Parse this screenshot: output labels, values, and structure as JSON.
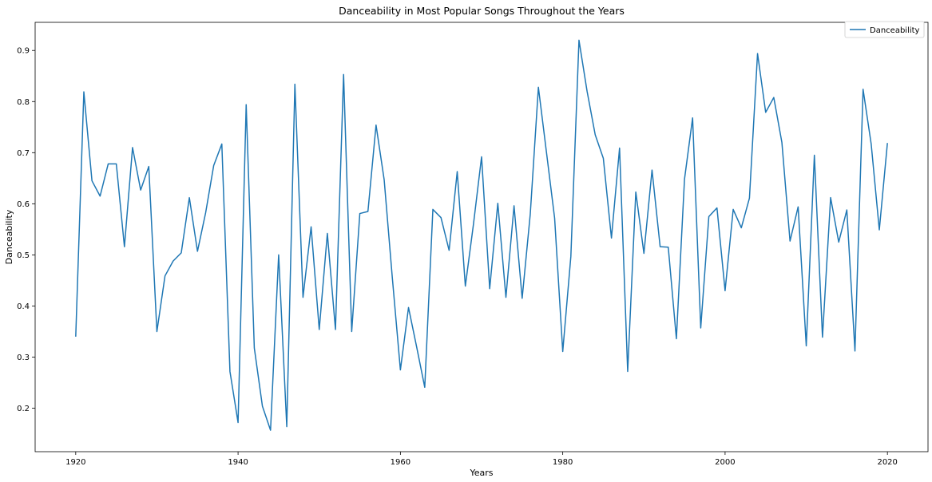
{
  "chart_data": {
    "type": "line",
    "title": "Danceability in Most Popular Songs Throughout the Years",
    "xlabel": "Years",
    "ylabel": "Danceability",
    "xlim": [
      1915,
      2025
    ],
    "ylim": [
      0.115,
      0.955
    ],
    "xticks": [
      1920,
      1940,
      1960,
      1980,
      2000,
      2020
    ],
    "yticks": [
      0.2,
      0.3,
      0.4,
      0.5,
      0.6,
      0.7,
      0.8,
      0.9
    ],
    "grid": false,
    "legend_position": "top-right",
    "series": [
      {
        "name": "Danceability",
        "color": "#1f77b4",
        "x": [
          1920,
          1921,
          1922,
          1923,
          1924,
          1925,
          1926,
          1927,
          1928,
          1929,
          1930,
          1931,
          1932,
          1933,
          1934,
          1935,
          1936,
          1937,
          1938,
          1939,
          1940,
          1941,
          1942,
          1943,
          1944,
          1945,
          1946,
          1947,
          1948,
          1949,
          1950,
          1951,
          1952,
          1953,
          1954,
          1955,
          1956,
          1957,
          1958,
          1959,
          1960,
          1961,
          1962,
          1963,
          1964,
          1965,
          1966,
          1967,
          1968,
          1969,
          1970,
          1971,
          1972,
          1973,
          1974,
          1975,
          1976,
          1977,
          1978,
          1979,
          1980,
          1981,
          1982,
          1983,
          1984,
          1985,
          1986,
          1987,
          1988,
          1989,
          1990,
          1991,
          1992,
          1993,
          1994,
          1995,
          1996,
          1997,
          1998,
          1999,
          2000,
          2001,
          2002,
          2003,
          2004,
          2005,
          2006,
          2007,
          2008,
          2009,
          2010,
          2011,
          2012,
          2013,
          2014,
          2015,
          2016,
          2017,
          2018,
          2019,
          2020
        ],
        "values": [
          0.34,
          0.819,
          0.645,
          0.615,
          0.678,
          0.678,
          0.516,
          0.71,
          0.627,
          0.673,
          0.35,
          0.459,
          0.488,
          0.504,
          0.612,
          0.507,
          0.582,
          0.675,
          0.717,
          0.272,
          0.172,
          0.794,
          0.318,
          0.204,
          0.157,
          0.5,
          0.164,
          0.834,
          0.417,
          0.555,
          0.354,
          0.542,
          0.354,
          0.853,
          0.35,
          0.581,
          0.585,
          0.754,
          0.647,
          0.456,
          0.275,
          0.397,
          0.32,
          0.241,
          0.589,
          0.573,
          0.509,
          0.663,
          0.439,
          0.56,
          0.692,
          0.434,
          0.601,
          0.417,
          0.596,
          0.415,
          0.58,
          0.828,
          0.7,
          0.572,
          0.311,
          0.497,
          0.92,
          0.82,
          0.735,
          0.689,
          0.533,
          0.709,
          0.272,
          0.623,
          0.503,
          0.666,
          0.516,
          0.515,
          0.336,
          0.648,
          0.768,
          0.357,
          0.575,
          0.592,
          0.43,
          0.589,
          0.553,
          0.611,
          0.894,
          0.779,
          0.808,
          0.72,
          0.527,
          0.594,
          0.322,
          0.695,
          0.339,
          0.612,
          0.525,
          0.588,
          0.312,
          0.824,
          0.717,
          0.549,
          0.719
        ]
      }
    ]
  }
}
